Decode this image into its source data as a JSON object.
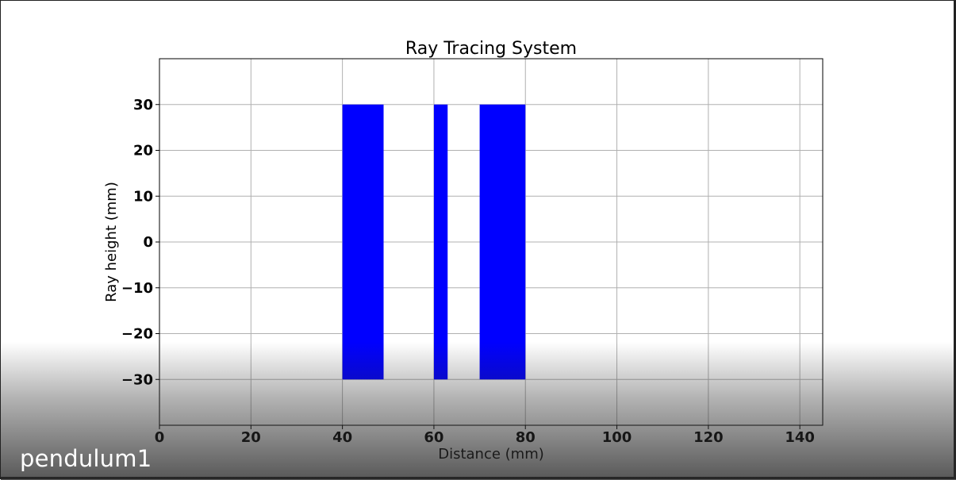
{
  "caption": "pendulum1",
  "chart_data": {
    "type": "bar",
    "title": "Ray Tracing System",
    "xlabel": "Distance (mm)",
    "ylabel": "Ray height (mm)",
    "xlim": [
      0,
      145
    ],
    "ylim": [
      -40,
      40
    ],
    "xticks": [
      0,
      20,
      40,
      60,
      80,
      100,
      120,
      140
    ],
    "yticks": [
      -30,
      -20,
      -10,
      0,
      10,
      20,
      30
    ],
    "xtick_labels": [
      "0",
      "20",
      "40",
      "60",
      "80",
      "100",
      "120",
      "140"
    ],
    "ytick_labels": [
      "−30",
      "−20",
      "−10",
      "0",
      "10",
      "20",
      "30"
    ],
    "grid": true,
    "bar_color": "#0000ff",
    "bars": [
      {
        "x_start": 40,
        "x_end": 49,
        "y_min": -30,
        "y_max": 30
      },
      {
        "x_start": 60,
        "x_end": 63,
        "y_min": -30,
        "y_max": 30
      },
      {
        "x_start": 70,
        "x_end": 80,
        "y_min": -30,
        "y_max": 30
      }
    ]
  }
}
